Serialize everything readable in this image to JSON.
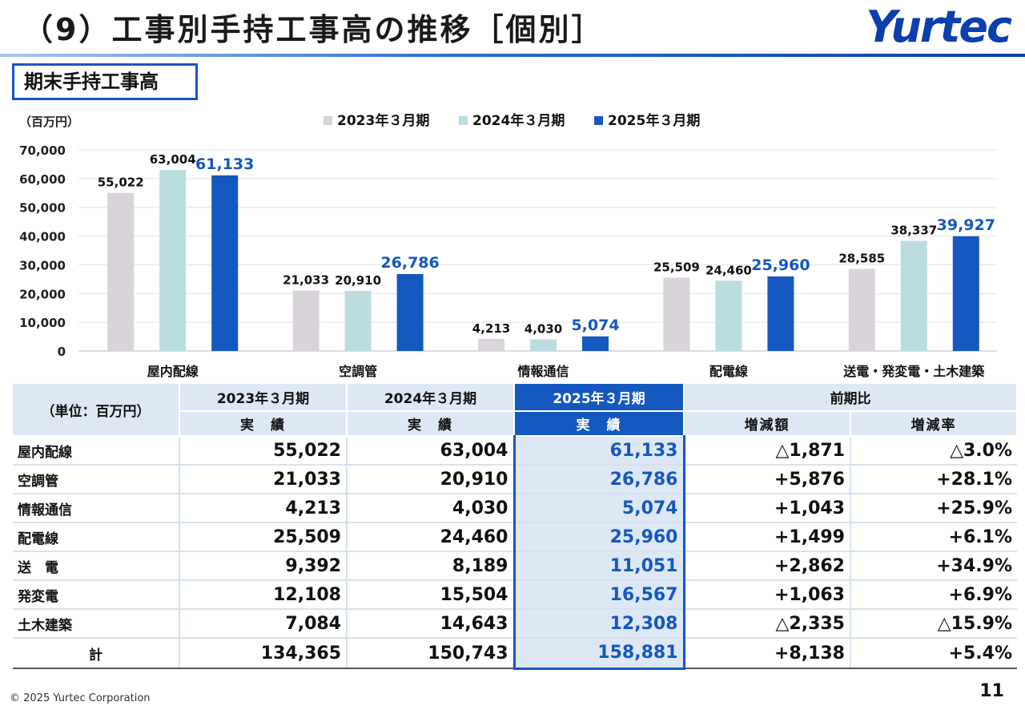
{
  "header": {
    "title": "（9）工事別手持工事高の推移［個別］",
    "logo": "Yurtec"
  },
  "section_label": "期末手持工事高",
  "chart_data": {
    "type": "bar",
    "unit_label": "（百万円）",
    "categories": [
      "屋内配線",
      "空調管",
      "情報通信",
      "配電線",
      "送電・発変電・土木建築"
    ],
    "series": [
      {
        "name": "2023年３月期",
        "values": [
          55022,
          21033,
          4213,
          25509,
          28585
        ],
        "color": "#d9d4da"
      },
      {
        "name": "2024年３月期",
        "values": [
          63004,
          20910,
          4030,
          24460,
          38337
        ],
        "color": "#bcdde0"
      },
      {
        "name": "2025年３月期",
        "values": [
          61133,
          26786,
          5074,
          25960,
          39927
        ],
        "color": "#1558c0"
      }
    ],
    "ylim": [
      0,
      70000
    ],
    "yticks": [
      "0",
      "10,000",
      "20,000",
      "30,000",
      "40,000",
      "50,000",
      "60,000",
      "70,000"
    ],
    "grid": true,
    "legend_position": "top-center"
  },
  "table": {
    "unit_label": "（単位：百万円）",
    "headers": {
      "y2023": "2023年３月期",
      "y2024": "2024年３月期",
      "y2025": "2025年３月期",
      "comparison": "前期比",
      "actual": "実　績",
      "diff_amount": "増減額",
      "diff_rate": "増減率"
    },
    "rows": [
      {
        "label": "屋内配線",
        "y2023": "55,022",
        "y2024": "63,004",
        "y2025": "61,133",
        "diff": "△1,871",
        "rate": "△3.0%"
      },
      {
        "label": "空調管",
        "y2023": "21,033",
        "y2024": "20,910",
        "y2025": "26,786",
        "diff": "+5,876",
        "rate": "+28.1%"
      },
      {
        "label": "情報通信",
        "y2023": "4,213",
        "y2024": "4,030",
        "y2025": "5,074",
        "diff": "+1,043",
        "rate": "+25.9%"
      },
      {
        "label": "配電線",
        "y2023": "25,509",
        "y2024": "24,460",
        "y2025": "25,960",
        "diff": "+1,499",
        "rate": "+6.1%"
      },
      {
        "label": "送　電",
        "y2023": "9,392",
        "y2024": "8,189",
        "y2025": "11,051",
        "diff": "+2,862",
        "rate": "+34.9%"
      },
      {
        "label": "発変電",
        "y2023": "12,108",
        "y2024": "15,504",
        "y2025": "16,567",
        "diff": "+1,063",
        "rate": "+6.9%"
      },
      {
        "label": "土木建築",
        "y2023": "7,084",
        "y2024": "14,643",
        "y2025": "12,308",
        "diff": "△2,335",
        "rate": "△15.9%"
      }
    ],
    "total": {
      "label": "計",
      "y2023": "134,365",
      "y2024": "150,743",
      "y2025": "158,881",
      "diff": "+8,138",
      "rate": "+5.4%"
    }
  },
  "footer": {
    "copyright": "© 2025 Yurtec Corporation",
    "page_number": "11"
  }
}
